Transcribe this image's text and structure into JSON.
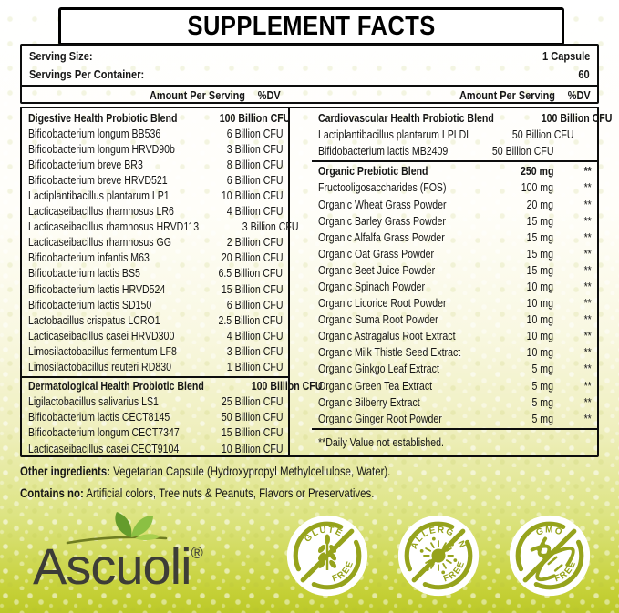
{
  "title": "SUPPLEMENT FACTS",
  "serving": {
    "size_label": "Serving Size:",
    "size_value": "1 Capsule",
    "container_label": "Servings Per Container:",
    "container_value": "60",
    "header_amount": "Amount Per Serving",
    "header_dv": "%DV"
  },
  "facts": {
    "left_column": {
      "sections": [
        {
          "header": {
            "name": "Digestive Health Probiotic Blend",
            "amount": "100 Billion CFU"
          },
          "rows": [
            {
              "name": "Bifidobacterium longum BB536",
              "amount": "6 Billion CFU"
            },
            {
              "name": "Bifidobacterium longum HRVD90b",
              "amount": "3 Billion CFU"
            },
            {
              "name": "Bifidobacterium breve BR3",
              "amount": "8 Billion CFU"
            },
            {
              "name": "Bifidobacterium breve HRVD521",
              "amount": "6 Billion CFU"
            },
            {
              "name": "Lactiplantibacillus plantarum LP1",
              "amount": "10 Billion CFU"
            },
            {
              "name": "Lacticaseibacillus rhamnosus LR6",
              "amount": "4 Billion CFU"
            },
            {
              "name": "Lacticaseibacillus rhamnosus HRVD113",
              "amount": "3 Billion CFU"
            },
            {
              "name": "Lacticaseibacillus rhamnosus GG",
              "amount": "2 Billion CFU"
            },
            {
              "name": "Bifidobacterium infantis M63",
              "amount": "20 Billion CFU"
            },
            {
              "name": "Bifidobacterium lactis BS5",
              "amount": "6.5 Billion CFU"
            },
            {
              "name": "Bifidobacterium lactis HRVD524",
              "amount": "15 Billion CFU"
            },
            {
              "name": "Bifidobacterium lactis SD150",
              "amount": "6 Billion CFU"
            },
            {
              "name": "Lactobacillus crispatus LCRO1",
              "amount": "2.5 Billion CFU"
            },
            {
              "name": "Lacticaseibacillus casei HRVD300",
              "amount": "4 Billion CFU"
            },
            {
              "name": "Limosilactobacillus fermentum LF8",
              "amount": "3 Billion CFU"
            },
            {
              "name": "Limosilactobacillus reuteri RD830",
              "amount": "1 Billion CFU"
            }
          ]
        },
        {
          "header": {
            "name": "Dermatological Health Probiotic Blend",
            "amount": "100 Billion CFU"
          },
          "rows": [
            {
              "name": "Ligilactobacillus salivarius LS1",
              "amount": "25 Billion CFU"
            },
            {
              "name": "Bifidobacterium lactis CECT8145",
              "amount": "50 Billion CFU"
            },
            {
              "name": "Bifidobacterium longum CECT7347",
              "amount": "15 Billion CFU"
            },
            {
              "name": "Lacticaseibacillus casei CECT9104",
              "amount": "10 Billion CFU"
            }
          ]
        }
      ]
    },
    "right_column": {
      "sections": [
        {
          "header": {
            "name": "Cardiovascular Health Probiotic Blend",
            "amount": "100 Billion CFU",
            "dv": ""
          },
          "rows": [
            {
              "name": "Lactiplantibacillus plantarum LPLDL",
              "amount": "50 Billion CFU",
              "dv": ""
            },
            {
              "name": "Bifidobacterium lactis MB2409",
              "amount": "50 Billion CFU",
              "dv": ""
            }
          ]
        },
        {
          "header": {
            "name": "Organic Prebiotic Blend",
            "amount": "250 mg",
            "dv": "**"
          },
          "rows": [
            {
              "name": "Fructooligosaccharides (FOS)",
              "amount": "100 mg",
              "dv": "**"
            },
            {
              "name": "Organic Wheat Grass Powder",
              "amount": "20 mg",
              "dv": "**"
            },
            {
              "name": "Organic Barley Grass Powder",
              "amount": "15 mg",
              "dv": "**"
            },
            {
              "name": "Organic Alfalfa Grass Powder",
              "amount": "15 mg",
              "dv": "**"
            },
            {
              "name": "Organic Oat Grass Powder",
              "amount": "15 mg",
              "dv": "**"
            },
            {
              "name": "Organic Beet Juice Powder",
              "amount": "15 mg",
              "dv": "**"
            },
            {
              "name": "Organic Spinach Powder",
              "amount": "10 mg",
              "dv": "**"
            },
            {
              "name": "Organic Licorice Root Powder",
              "amount": "10 mg",
              "dv": "**"
            },
            {
              "name": "Organic Suma Root Powder",
              "amount": "10 mg",
              "dv": "**"
            },
            {
              "name": "Organic Astragalus Root Extract",
              "amount": "10 mg",
              "dv": "**"
            },
            {
              "name": "Organic Milk Thistle Seed Extract",
              "amount": "10 mg",
              "dv": "**"
            },
            {
              "name": "Organic Ginkgo Leaf Extract",
              "amount": "5 mg",
              "dv": "**"
            },
            {
              "name": "Organic Green Tea Extract",
              "amount": "5 mg",
              "dv": "**"
            },
            {
              "name": "Organic Bilberry Extract",
              "amount": "5 mg",
              "dv": "**"
            },
            {
              "name": "Organic Ginger Root Powder",
              "amount": "5 mg",
              "dv": "**"
            }
          ]
        }
      ],
      "footnote": "**Daily Value not established."
    }
  },
  "other_ingredients": {
    "label": "Other ingredients:",
    "text": " Vegetarian Capsule (Hydroxypropyl Methylcellulose, Water)."
  },
  "contains_no": {
    "label": "Contains no:",
    "text": " Artificial colors, Tree nuts & Peanuts, Flavors or Preservatives."
  },
  "brand": {
    "name": "Ascuoli",
    "registered": "®"
  },
  "badges": [
    {
      "top": "GLUTEN",
      "bottom": "FREE",
      "icon": "wheat-icon"
    },
    {
      "top": "ALLERGEN",
      "bottom": "FREE",
      "icon": "allergen-icon"
    },
    {
      "top": "GMO",
      "bottom": "FREE",
      "icon": "dna-icon"
    }
  ],
  "colors": {
    "badge_olive": "#96a31c",
    "leaf_dark_green": "#649c2c",
    "leaf_light_green": "#8bc043",
    "background_bottom": "#bcc928",
    "text": "#161616"
  }
}
